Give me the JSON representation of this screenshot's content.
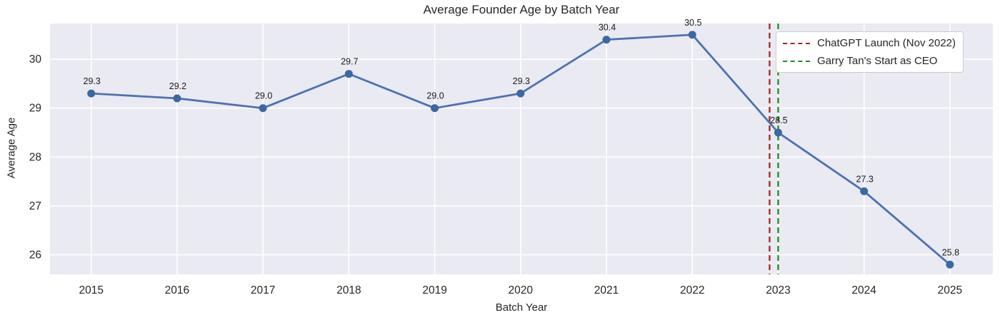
{
  "chart_data": {
    "type": "line",
    "title": "Average Founder Age by Batch Year",
    "xlabel": "Batch Year",
    "ylabel": "Average Age",
    "categories": [
      "2015",
      "2016",
      "2017",
      "2018",
      "2019",
      "2020",
      "2021",
      "2022",
      "2023",
      "2024",
      "2025"
    ],
    "values": [
      29.3,
      29.2,
      29.0,
      29.7,
      29.0,
      29.3,
      30.4,
      30.5,
      28.5,
      27.3,
      25.8
    ],
    "point_labels": [
      "29.3",
      "29.2",
      "29.0",
      "29.7",
      "29.0",
      "29.3",
      "30.4",
      "30.5",
      "28.5",
      "27.3",
      "25.8"
    ],
    "yticks": [
      "26",
      "27",
      "28",
      "29",
      "30"
    ],
    "ylim": [
      25.6,
      30.73
    ],
    "xlim": [
      2014.52,
      2025.5
    ],
    "grid": true,
    "legend_position": "upper right",
    "vlines": [
      {
        "x": 2022.9,
        "color": "#A32626",
        "label": "ChatGPT Launch (Nov 2022)"
      },
      {
        "x": 2023.0,
        "color": "#228B22",
        "label": "Garry Tan's Start as CEO"
      }
    ],
    "colors": {
      "line": "#4C72B0",
      "marker": "#3A68A2",
      "plot_background": "#EAEAF2",
      "grid": "#FFFFFF",
      "text": "#262626",
      "point_label_text": "#1A1A1A"
    }
  }
}
